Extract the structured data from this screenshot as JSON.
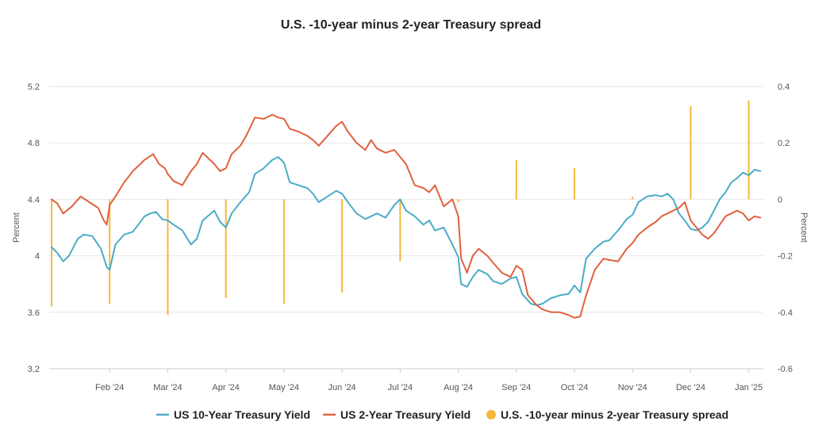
{
  "chart_data": {
    "type": "line",
    "title": "U.S. -10-year minus 2-year Treasury spread",
    "ylabel_left": "Percent",
    "ylabel_right": "Percent",
    "ylim_left": [
      3.2,
      5.2
    ],
    "ylim_right": [
      -0.6,
      0.4
    ],
    "yticks_left": [
      "3.2",
      "3.6",
      "4",
      "4.4",
      "4.8",
      "5.2"
    ],
    "yticks_right": [
      "-0.6",
      "-0.4",
      "-0.2",
      "0",
      "0.2",
      "0.4"
    ],
    "x_range": [
      0,
      12.25
    ],
    "xticks": [
      {
        "x": 1,
        "label": "Feb '24"
      },
      {
        "x": 2,
        "label": "Mar '24"
      },
      {
        "x": 3,
        "label": "Apr '24"
      },
      {
        "x": 4,
        "label": "May '24"
      },
      {
        "x": 5,
        "label": "Jun '24"
      },
      {
        "x": 6,
        "label": "Jul '24"
      },
      {
        "x": 7,
        "label": "Aug '24"
      },
      {
        "x": 8,
        "label": "Sep '24"
      },
      {
        "x": 9,
        "label": "Oct '24"
      },
      {
        "x": 10,
        "label": "Nov '24"
      },
      {
        "x": 11,
        "label": "Dec '24"
      },
      {
        "x": 12,
        "label": "Jan '25"
      }
    ],
    "series": [
      {
        "name": "US 10-Year Treasury Yield",
        "color": "#4bacc6",
        "x": [
          0.0,
          0.1,
          0.2,
          0.3,
          0.45,
          0.55,
          0.7,
          0.85,
          0.95,
          1.0,
          1.1,
          1.25,
          1.4,
          1.6,
          1.7,
          1.8,
          1.9,
          2.0,
          2.1,
          2.25,
          2.4,
          2.5,
          2.6,
          2.8,
          2.9,
          3.0,
          3.1,
          3.25,
          3.4,
          3.5,
          3.65,
          3.8,
          3.9,
          4.0,
          4.1,
          4.25,
          4.4,
          4.5,
          4.6,
          4.75,
          4.9,
          5.0,
          5.1,
          5.25,
          5.4,
          5.5,
          5.6,
          5.75,
          5.9,
          6.0,
          6.1,
          6.25,
          6.4,
          6.5,
          6.6,
          6.75,
          6.9,
          7.0,
          7.05,
          7.15,
          7.25,
          7.35,
          7.5,
          7.6,
          7.75,
          7.9,
          8.0,
          8.1,
          8.25,
          8.35,
          8.45,
          8.6,
          8.75,
          8.9,
          9.0,
          9.1,
          9.2,
          9.35,
          9.5,
          9.6,
          9.75,
          9.9,
          10.0,
          10.1,
          10.25,
          10.4,
          10.5,
          10.6,
          10.7,
          10.8,
          10.9,
          11.0,
          11.1,
          11.2,
          11.3,
          11.4,
          11.5,
          11.6,
          11.7,
          11.8,
          11.9,
          12.0,
          12.1,
          12.2
        ],
        "values": [
          4.06,
          4.02,
          3.96,
          4.0,
          4.12,
          4.15,
          4.14,
          4.05,
          3.92,
          3.9,
          4.08,
          4.15,
          4.17,
          4.28,
          4.3,
          4.31,
          4.26,
          4.25,
          4.22,
          4.18,
          4.08,
          4.12,
          4.25,
          4.32,
          4.24,
          4.2,
          4.3,
          4.38,
          4.45,
          4.58,
          4.62,
          4.68,
          4.7,
          4.66,
          4.52,
          4.5,
          4.48,
          4.44,
          4.38,
          4.42,
          4.46,
          4.44,
          4.38,
          4.3,
          4.26,
          4.28,
          4.3,
          4.27,
          4.36,
          4.4,
          4.32,
          4.28,
          4.22,
          4.25,
          4.18,
          4.2,
          4.08,
          3.99,
          3.8,
          3.78,
          3.85,
          3.9,
          3.87,
          3.82,
          3.8,
          3.84,
          3.85,
          3.73,
          3.66,
          3.65,
          3.66,
          3.7,
          3.72,
          3.73,
          3.79,
          3.74,
          3.98,
          4.05,
          4.1,
          4.11,
          4.18,
          4.26,
          4.29,
          4.38,
          4.42,
          4.43,
          4.42,
          4.44,
          4.4,
          4.3,
          4.25,
          4.19,
          4.18,
          4.2,
          4.24,
          4.32,
          4.4,
          4.45,
          4.52,
          4.55,
          4.59,
          4.57,
          4.61,
          4.6
        ]
      },
      {
        "name": "US 2-Year Treasury Yield",
        "color": "#e0613e",
        "x": [
          0.0,
          0.1,
          0.2,
          0.35,
          0.5,
          0.65,
          0.8,
          0.9,
          0.95,
          1.0,
          1.1,
          1.25,
          1.4,
          1.6,
          1.75,
          1.85,
          1.95,
          2.0,
          2.1,
          2.25,
          2.4,
          2.5,
          2.6,
          2.8,
          2.9,
          3.0,
          3.1,
          3.25,
          3.35,
          3.5,
          3.65,
          3.8,
          3.9,
          4.0,
          4.1,
          4.25,
          4.4,
          4.5,
          4.6,
          4.75,
          4.9,
          5.0,
          5.1,
          5.25,
          5.4,
          5.5,
          5.6,
          5.75,
          5.9,
          6.0,
          6.1,
          6.25,
          6.4,
          6.5,
          6.6,
          6.75,
          6.9,
          7.0,
          7.05,
          7.15,
          7.25,
          7.35,
          7.5,
          7.6,
          7.75,
          7.9,
          8.0,
          8.1,
          8.2,
          8.35,
          8.45,
          8.6,
          8.75,
          8.9,
          9.0,
          9.1,
          9.2,
          9.35,
          9.5,
          9.6,
          9.75,
          9.9,
          10.0,
          10.1,
          10.25,
          10.4,
          10.5,
          10.6,
          10.7,
          10.8,
          10.9,
          11.0,
          11.1,
          11.2,
          11.3,
          11.4,
          11.5,
          11.6,
          11.7,
          11.8,
          11.9,
          12.0,
          12.1,
          12.2
        ],
        "values": [
          4.4,
          4.37,
          4.3,
          4.35,
          4.42,
          4.38,
          4.34,
          4.25,
          4.22,
          4.36,
          4.42,
          4.52,
          4.6,
          4.68,
          4.72,
          4.65,
          4.62,
          4.58,
          4.53,
          4.5,
          4.6,
          4.65,
          4.73,
          4.65,
          4.6,
          4.62,
          4.72,
          4.78,
          4.85,
          4.98,
          4.97,
          5.0,
          4.98,
          4.97,
          4.9,
          4.88,
          4.85,
          4.82,
          4.78,
          4.85,
          4.92,
          4.95,
          4.88,
          4.8,
          4.75,
          4.82,
          4.76,
          4.73,
          4.75,
          4.7,
          4.65,
          4.5,
          4.48,
          4.45,
          4.5,
          4.35,
          4.4,
          4.28,
          3.98,
          3.88,
          4.0,
          4.05,
          4.0,
          3.95,
          3.88,
          3.85,
          3.93,
          3.9,
          3.72,
          3.65,
          3.62,
          3.6,
          3.6,
          3.58,
          3.56,
          3.57,
          3.72,
          3.9,
          3.98,
          3.97,
          3.96,
          4.05,
          4.09,
          4.15,
          4.2,
          4.24,
          4.28,
          4.3,
          4.32,
          4.34,
          4.38,
          4.25,
          4.2,
          4.15,
          4.12,
          4.16,
          4.22,
          4.28,
          4.3,
          4.32,
          4.3,
          4.25,
          4.28,
          4.27
        ]
      }
    ],
    "spread_series": {
      "name": "U.S. -10-year minus 2-year Treasury spread",
      "color": "#f6b93b",
      "type": "bar",
      "x": [
        0,
        1,
        2,
        3,
        4,
        5,
        6,
        7,
        8,
        9,
        10,
        11,
        12
      ],
      "values": [
        -0.38,
        -0.37,
        -0.41,
        -0.35,
        -0.37,
        -0.33,
        -0.22,
        -0.01,
        0.14,
        0.11,
        0.01,
        0.33,
        0.35
      ]
    },
    "legend": {
      "position": "bottom",
      "items": [
        {
          "label": "US 10-Year Treasury Yield",
          "color": "#4bacc6",
          "shape": "line"
        },
        {
          "label": "US 2-Year Treasury Yield",
          "color": "#e0613e",
          "shape": "line"
        },
        {
          "label": "U.S. -10-year minus 2-year Treasury spread",
          "color": "#f6b93b",
          "shape": "dot"
        }
      ]
    }
  }
}
